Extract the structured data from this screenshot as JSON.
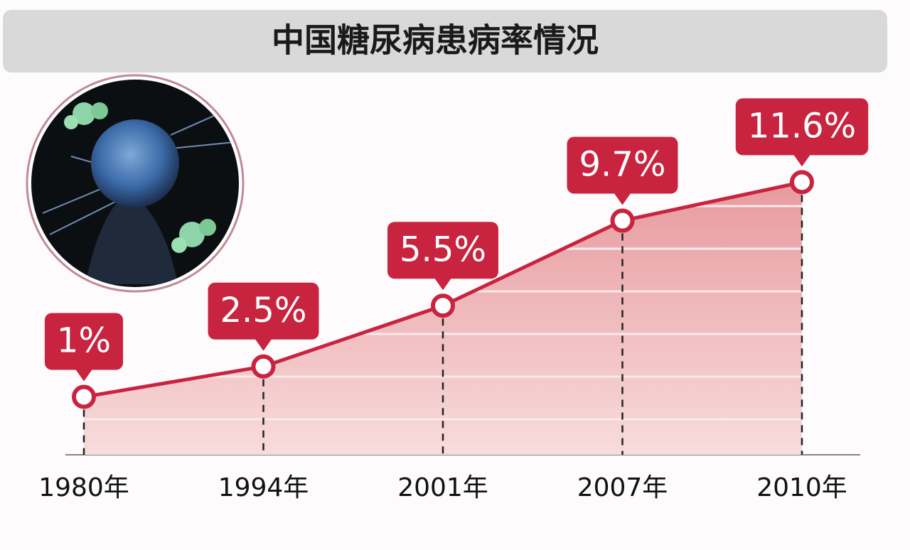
{
  "chart_data": {
    "type": "line",
    "title": "中国糖尿病患病率情况",
    "categories": [
      "1980年",
      "1994年",
      "2001年",
      "2007年",
      "2010年"
    ],
    "values": [
      1,
      2.5,
      5.5,
      9.7,
      11.6
    ],
    "value_labels": [
      "1%",
      "2.5%",
      "5.5%",
      "9.7%",
      "11.6%"
    ],
    "color": "#c8243f"
  }
}
